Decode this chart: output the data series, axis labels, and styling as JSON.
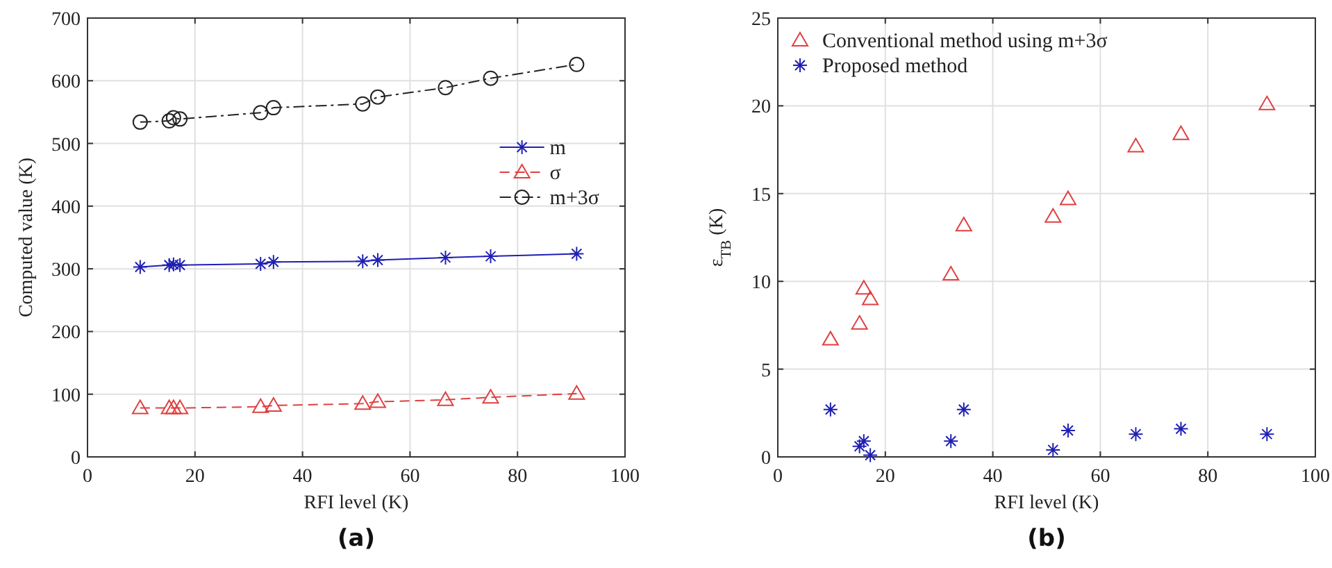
{
  "chart_data": [
    {
      "type": "line",
      "xlabel": "RFI level (K)",
      "ylabel": "Computed value (K)",
      "x": [
        9.8,
        15.2,
        16,
        17.2,
        32.2,
        34.6,
        51.2,
        54,
        66.6,
        75,
        91
      ],
      "xlim": [
        0,
        100
      ],
      "xticks": [
        0,
        20,
        40,
        60,
        80,
        100
      ],
      "ylim": [
        0,
        700
      ],
      "yticks": [
        0,
        100,
        200,
        300,
        400,
        500,
        600,
        700
      ],
      "grid": true,
      "legend": "right",
      "annotations": [
        "(a)"
      ],
      "series": [
        {
          "name": "m",
          "color": "#1f1fb4",
          "marker": "cross",
          "line_style": "solid",
          "values": [
            303,
            306,
            307,
            306,
            308,
            311,
            312,
            314,
            318,
            320,
            324
          ]
        },
        {
          "name": "σ",
          "color": "#e04040",
          "marker": "triangle",
          "line_style": "dashed",
          "values": [
            78,
            78,
            78,
            78,
            80,
            82,
            85,
            88,
            91,
            95,
            101
          ]
        },
        {
          "name": "m+3σ",
          "color": "#222222",
          "marker": "circle",
          "line_style": "dashdot",
          "values": [
            534,
            536,
            541,
            539,
            549,
            557,
            563,
            574,
            589,
            604,
            626
          ]
        }
      ]
    },
    {
      "type": "scatter",
      "xlabel": "RFI level (K)",
      "ylabel": "ε$_{TB}$ (K)",
      "x": [
        9.8,
        15.2,
        16,
        17.2,
        32.2,
        34.6,
        51.2,
        54,
        66.6,
        75,
        91
      ],
      "xlim": [
        0,
        100
      ],
      "xticks": [
        0,
        20,
        40,
        60,
        80,
        100
      ],
      "ylim": [
        0,
        25
      ],
      "yticks": [
        0,
        5,
        10,
        15,
        20,
        25
      ],
      "grid": true,
      "legend": "top left",
      "annotations": [
        "(b)"
      ],
      "series": [
        {
          "name": "Conventional method using m+3σ",
          "color": "#e04040",
          "marker": "triangle",
          "values": [
            6.7,
            7.6,
            9.6,
            9.0,
            10.4,
            13.2,
            13.7,
            14.7,
            17.7,
            18.4,
            20.1
          ]
        },
        {
          "name": "Proposed method",
          "color": "#1f1fb4",
          "marker": "cross",
          "values": [
            2.7,
            0.6,
            0.9,
            0.1,
            0.9,
            2.7,
            0.4,
            1.5,
            1.3,
            1.6,
            1.3
          ]
        }
      ]
    }
  ]
}
